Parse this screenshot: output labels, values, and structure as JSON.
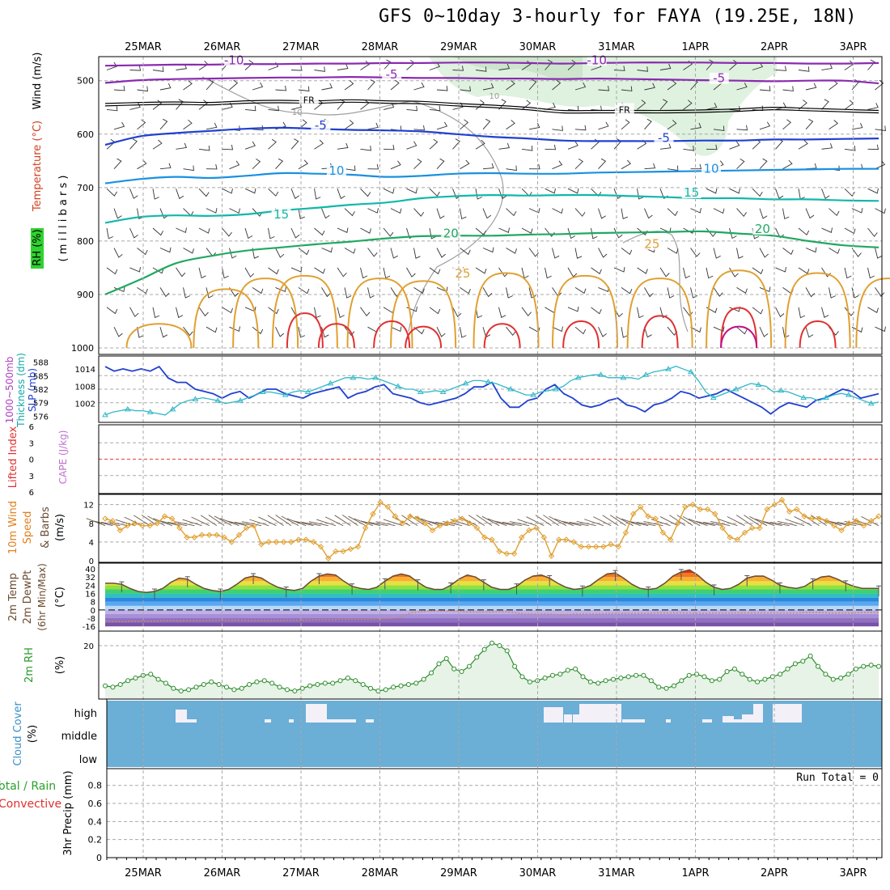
{
  "title": "GFS 0~10day 3-hourly for FAYA (19.25E, 18N)",
  "dates": [
    "25MAR",
    "26MAR",
    "27MAR",
    "28MAR",
    "29MAR",
    "30MAR",
    "31MAR",
    "1APR",
    "2APR",
    "3APR"
  ],
  "colors": {
    "frame": "#000000",
    "grid": "#a8a8a8",
    "purple": "#8a2ab0",
    "blue": "#2040d0",
    "lightblue": "#1a90e0",
    "teal": "#10b8a8",
    "green": "#20a860",
    "orange": "#e0a030",
    "red": "#e03030",
    "magenta": "#c0108a",
    "rhfill": "#dcefdc",
    "cloud": "#6baed6",
    "cyanline": "#30b8c8"
  },
  "chart_data": [
    {
      "panel": "cross-section",
      "type": "line",
      "ylabel_lines": [
        "RH (%)",
        "Temperature (°C)",
        "Wind (m/s)",
        "(millibars)"
      ],
      "ylabel_rh": "RH (%)",
      "ylabel_temp": "Temperature (°C)",
      "ylabel_wind": "Wind (m/s)",
      "ylabel_mb": "( m i l l i b a r s )",
      "yticks": [
        500,
        600,
        700,
        800,
        900,
        1000
      ],
      "ylim": [
        455,
        1000
      ],
      "contour_labels": [
        {
          "text": "-10",
          "day": 1.15,
          "p": 466
        },
        {
          "text": "-10",
          "day": 5.75,
          "p": 466
        },
        {
          "text": "-5",
          "day": 3.15,
          "p": 493
        },
        {
          "text": "-5",
          "day": 7.3,
          "p": 500
        },
        {
          "text": "FR",
          "day": 2.1,
          "p": 539
        },
        {
          "text": "FR",
          "day": 6.1,
          "p": 557
        },
        {
          "text": "-5",
          "day": 2.25,
          "p": 588
        },
        {
          "text": "-5",
          "day": 6.6,
          "p": 612
        },
        {
          "text": "10",
          "day": 2.45,
          "p": 673
        },
        {
          "text": "10",
          "day": 7.2,
          "p": 669
        },
        {
          "text": "15",
          "day": 1.75,
          "p": 755
        },
        {
          "text": "15",
          "day": 6.95,
          "p": 714
        },
        {
          "text": "20",
          "day": 3.9,
          "p": 790
        },
        {
          "text": "20",
          "day": 7.85,
          "p": 782
        },
        {
          "text": "25",
          "day": 4.05,
          "p": 865
        },
        {
          "text": "25",
          "day": 6.45,
          "p": 810
        }
      ],
      "rh_contour_labels": [
        {
          "text": "10",
          "day": 1.95,
          "p": 564
        },
        {
          "text": "10",
          "day": 4.45,
          "p": 534
        }
      ],
      "isotherms": [
        {
          "name": "-10",
          "color": "purple",
          "p": [
            472,
            471,
            470,
            470,
            469,
            469,
            468,
            468,
            467,
            467,
            466,
            466,
            467,
            468,
            467,
            466,
            466,
            466,
            467,
            467,
            468,
            468,
            467
          ]
        },
        {
          "name": "-5",
          "color": "purple",
          "p": [
            504,
            499,
            497,
            496,
            495,
            494,
            494,
            493,
            494,
            495,
            495,
            496,
            496,
            497,
            496,
            497,
            498,
            499,
            500,
            501,
            500,
            500,
            505
          ]
        },
        {
          "name": "FR",
          "color": "black",
          "p": [
            545,
            543,
            542,
            543,
            540,
            539,
            540,
            538,
            540,
            541,
            545,
            548,
            552,
            558,
            558,
            558,
            558,
            557,
            555,
            552,
            554,
            556,
            558
          ]
        },
        {
          "name": "5",
          "color": "blue",
          "p": [
            620,
            604,
            598,
            594,
            590,
            588,
            590,
            592,
            593,
            595,
            600,
            605,
            608,
            612,
            613,
            613,
            613,
            612,
            612,
            610,
            610,
            609,
            608
          ]
        },
        {
          "name": "10",
          "color": "lightblue",
          "p": [
            692,
            684,
            680,
            682,
            678,
            673,
            674,
            676,
            680,
            678,
            674,
            673,
            674,
            674,
            672,
            671,
            670,
            669,
            668,
            667,
            666,
            665,
            665
          ]
        },
        {
          "name": "15",
          "color": "teal",
          "p": [
            766,
            755,
            752,
            753,
            750,
            743,
            738,
            732,
            728,
            720,
            716,
            714,
            715,
            714,
            714,
            716,
            718,
            720,
            720,
            722,
            722,
            724,
            725
          ]
        },
        {
          "name": "20",
          "color": "green",
          "p": [
            900,
            872,
            842,
            828,
            818,
            812,
            806,
            801,
            795,
            791,
            790,
            790,
            788,
            787,
            785,
            784,
            783,
            782,
            786,
            790,
            800,
            808,
            812
          ]
        }
      ],
      "diurnal_cells": [
        {
          "day": 0.2,
          "top": 955,
          "color": "orange"
        },
        {
          "day": 1.05,
          "top": 890,
          "color": "orange"
        },
        {
          "day": 1.55,
          "top": 870,
          "color": "orange"
        },
        {
          "day": 2.05,
          "top": 865,
          "color": "orange"
        },
        {
          "day": 3.0,
          "top": 870,
          "color": "orange"
        },
        {
          "day": 3.55,
          "top": 875,
          "color": "orange"
        },
        {
          "day": 4.6,
          "top": 860,
          "color": "orange"
        },
        {
          "day": 5.6,
          "top": 865,
          "color": "orange"
        },
        {
          "day": 6.55,
          "top": 870,
          "color": "orange"
        },
        {
          "day": 7.55,
          "top": 855,
          "color": "orange"
        },
        {
          "day": 8.55,
          "top": 860,
          "color": "orange"
        },
        {
          "day": 9.45,
          "top": 870,
          "color": "orange"
        }
      ],
      "hot_cells": [
        {
          "day": 2.05,
          "top": 935,
          "color": "red"
        },
        {
          "day": 2.45,
          "top": 955,
          "color": "red"
        },
        {
          "day": 3.15,
          "top": 950,
          "color": "red"
        },
        {
          "day": 3.55,
          "top": 960,
          "color": "red"
        },
        {
          "day": 4.55,
          "top": 955,
          "color": "red"
        },
        {
          "day": 5.55,
          "top": 950,
          "color": "red"
        },
        {
          "day": 6.55,
          "top": 940,
          "color": "red"
        },
        {
          "day": 7.55,
          "top": 925,
          "color": "red"
        },
        {
          "day": 7.55,
          "top": 960,
          "color": "magenta"
        },
        {
          "day": 8.55,
          "top": 950,
          "color": "red"
        }
      ]
    },
    {
      "panel": "thickness-slp",
      "type": "line",
      "ylabel_left": "1000~500mb Thickness (dm)",
      "ylabel_right": "SLP (mb)",
      "ylabel_1": "1000~500mb",
      "ylabel_2": "Thickness (dm)",
      "ylabel_3": "SLP (mb)",
      "yticks_left": [
        576,
        579,
        582,
        585,
        588
      ],
      "yticks_right": [
        1002,
        1008,
        1014
      ],
      "thickness": {
        "color": "blue",
        "values": [
          587,
          586,
          586.5,
          586,
          586.5,
          586,
          587,
          584.5,
          583.5,
          583.5,
          582,
          581.5,
          581,
          580,
          581,
          581.5,
          580,
          581,
          582,
          582,
          581,
          580.5,
          580,
          581,
          581.5,
          582,
          582.5,
          580,
          581,
          581.5,
          582.5,
          583,
          581,
          580.5,
          580,
          579,
          578.5,
          579,
          579.5,
          580,
          581,
          582.5,
          582.5,
          583.5,
          580,
          578,
          578,
          579.5,
          580,
          582,
          583,
          581,
          580,
          578.5,
          578,
          578.5,
          579.5,
          580,
          578.5,
          578,
          577,
          578.5,
          579,
          580,
          581.5,
          581,
          580,
          580.5,
          581,
          582,
          581,
          580,
          579,
          578,
          576.5,
          578,
          579,
          578.5,
          578,
          579.5,
          580,
          581,
          582,
          581.5,
          580,
          580.5,
          581
        ]
      },
      "slp": {
        "color": "cyanline",
        "values": [
          998,
          999,
          999.5,
          1000,
          999.5,
          999.5,
          999,
          998.5,
          998,
          1000,
          1002,
          1003,
          1003.5,
          1004,
          1003.5,
          1003,
          1002,
          1002.5,
          1003,
          1004,
          1005,
          1006,
          1006,
          1005.5,
          1005,
          1006,
          1006.5,
          1006,
          1007,
          1008,
          1009,
          1010,
          1011,
          1011,
          1011,
          1010.5,
          1011,
          1010,
          1009,
          1008,
          1007,
          1007,
          1006,
          1006,
          1006.5,
          1006,
          1007,
          1008,
          1009,
          1010,
          1010,
          1009.5,
          1009,
          1008,
          1007,
          1006,
          1005,
          1005,
          1006,
          1006.5,
          1007,
          1008,
          1010,
          1011,
          1011.5,
          1012,
          1012,
          1011,
          1011,
          1011,
          1011,
          1010.5,
          1012,
          1013,
          1013.5,
          1014,
          1015,
          1014,
          1013,
          1010,
          1006,
          1004,
          1005,
          1006,
          1007,
          1008,
          1009,
          1008.5,
          1008,
          1006,
          1006.5,
          1006,
          1005,
          1004,
          1004,
          1003,
          1004,
          1005,
          1005.5,
          1005,
          1004,
          1003,
          1002,
          1002.5
        ]
      }
    },
    {
      "panel": "lifted-index-cape",
      "type": "line",
      "ylabel_li": "Lifted Index",
      "ylabel_cape": "CAPE (J/kg)",
      "yticks": [
        -6,
        -3,
        0,
        3,
        6
      ],
      "tick_labels": [
        "6",
        "3",
        "0",
        "3",
        "6"
      ]
    },
    {
      "panel": "10m-wind",
      "type": "line",
      "ylabel_lines": [
        "10m Wind",
        "Speed",
        "& Barbs",
        "(m/s)"
      ],
      "ylabel_1": "10m Wind",
      "ylabel_2": "Speed",
      "ylabel_3": "& Barbs",
      "ylabel_4": "(m/s)",
      "yticks": [
        0,
        4,
        8,
        12
      ],
      "ylim": [
        0,
        13.5
      ],
      "speed": [
        9,
        8.5,
        6.5,
        7.5,
        8,
        7.5,
        7.5,
        8,
        9.5,
        9,
        7,
        5,
        5,
        5.5,
        5.5,
        5.5,
        5,
        4,
        5.5,
        7,
        7.5,
        3.5,
        4,
        4,
        4,
        4,
        4.5,
        4.5,
        4,
        3,
        0.5,
        2,
        2,
        2.5,
        3,
        7,
        10,
        12.5,
        11.5,
        9.5,
        8,
        9.5,
        9,
        8,
        6.5,
        7.5,
        8,
        8.5,
        9,
        8,
        7,
        5,
        4.5,
        2,
        1.5,
        1.5,
        5,
        6.5,
        7,
        5,
        1,
        4.5,
        4.5,
        4,
        3,
        3,
        3,
        3,
        3.5,
        3,
        6,
        10,
        11.5,
        9.5,
        9,
        6,
        4.5,
        8,
        11.5,
        12,
        11,
        11,
        10,
        7,
        5,
        4.5,
        6,
        7,
        7,
        11,
        12,
        13,
        10.5,
        11,
        9.5,
        9,
        9,
        8.5,
        7.5,
        6.5,
        8,
        8.5,
        7.5,
        8.5,
        9.5
      ]
    },
    {
      "panel": "2m-temp",
      "type": "area",
      "ylabel_lines": [
        "2m Temp",
        "2m DewPt",
        "(6hr Min/Max)",
        "(°C)"
      ],
      "ylabel_1": "2m Temp",
      "ylabel_2": "2m DewPt",
      "ylabel_3": "(6hr Min/Max)",
      "ylabel_4": "(°C)",
      "yticks": [
        -16,
        -8,
        0,
        8,
        16,
        24,
        32,
        40
      ],
      "tick_labels": [
        "-16",
        "-8",
        "0",
        "8",
        "16",
        "24",
        "32",
        "40"
      ],
      "ylim": [
        -19,
        44
      ],
      "temp": [
        26,
        26,
        25,
        21,
        18,
        17,
        18,
        21,
        27,
        31,
        30,
        25,
        21,
        19,
        18,
        20,
        25,
        31,
        33,
        31,
        26,
        22,
        20,
        19,
        21,
        28,
        33,
        35,
        34,
        28,
        23,
        21,
        20,
        22,
        28,
        33,
        35,
        33,
        27,
        22,
        20,
        20,
        24,
        30,
        34,
        32,
        27,
        22,
        20,
        20,
        23,
        29,
        33,
        34,
        31,
        26,
        22,
        20,
        21,
        24,
        30,
        35,
        36,
        31,
        25,
        21,
        20,
        21,
        26,
        33,
        37,
        39,
        34,
        27,
        22,
        20,
        21,
        25,
        31,
        33,
        33,
        29,
        24,
        22,
        21,
        23,
        28,
        32,
        33,
        30,
        26,
        23,
        21,
        21,
        21
      ],
      "dewpt": [
        -11,
        -11,
        -11.5,
        -11,
        -11,
        -11,
        -11,
        -10.5,
        -10.5,
        -10.5,
        -10.5,
        -10.5,
        -10.5,
        -10,
        -10,
        -10,
        -10,
        -10,
        -10.5,
        -10.5,
        -10.5,
        -10.5,
        -10,
        -10,
        -10,
        -9.5,
        -9.5,
        -9.5,
        -9.5,
        -9,
        -9,
        -9,
        -9,
        -8.5,
        -8.5,
        -8,
        -7,
        -3,
        -2,
        -1,
        -1,
        -1,
        -1,
        -1,
        -2,
        -2,
        -2,
        -2,
        -1.5,
        -2,
        -3,
        -4,
        -4,
        -4,
        -4,
        -4.5,
        -4.5,
        -4,
        -4,
        -4,
        -4,
        -3.5,
        -3.5,
        -3.5,
        -3.5,
        -3.5,
        -3.5,
        -3,
        -3,
        -3,
        -3,
        -3,
        -3.5,
        -3.5,
        -3,
        -3,
        -3,
        -3,
        -3,
        -3,
        -3,
        -3,
        -3,
        -3,
        -3,
        -2.5,
        -2.5,
        -2.5,
        -3,
        -3,
        -3,
        -3,
        -2.5,
        -2.5,
        -2.5
      ]
    },
    {
      "panel": "2m-rh",
      "type": "area",
      "ylabel_1": "2m RH",
      "ylabel_2": "(%)",
      "yticks": [
        20
      ],
      "ylim": [
        0,
        25
      ],
      "values": [
        4.5,
        4,
        5,
        6.5,
        7.5,
        8.5,
        9,
        7,
        5.5,
        3.5,
        2.5,
        3,
        4,
        5,
        6,
        5,
        4,
        3,
        3.5,
        5,
        6,
        6.5,
        5.5,
        4,
        3,
        2.5,
        3.5,
        4.5,
        5,
        5.5,
        5.5,
        6.5,
        7.5,
        6.5,
        5,
        3.5,
        2.5,
        3,
        4,
        4.5,
        5,
        5.5,
        7,
        9.5,
        13,
        15,
        11,
        10,
        12,
        15.5,
        18.5,
        21,
        20,
        18,
        12,
        8,
        6,
        6.5,
        7.5,
        8.5,
        9,
        10.5,
        11,
        8,
        6,
        5.5,
        6.5,
        7,
        7.5,
        8,
        8.5,
        8.5,
        6.5,
        4,
        3.5,
        4.5,
        6.5,
        8.5,
        9,
        8,
        6.5,
        7,
        10,
        11,
        9,
        7,
        6,
        7,
        8,
        9,
        11,
        13,
        14,
        16,
        12,
        9,
        7,
        7.5,
        9,
        11,
        12,
        12.5,
        12
      ]
    },
    {
      "panel": "cloud-cover",
      "type": "bar",
      "ylabel_1": "Cloud Cover",
      "ylabel_2": "(%)",
      "levels": [
        "high",
        "middle",
        "low"
      ]
    },
    {
      "panel": "precip",
      "type": "line",
      "ylabel_lines": [
        "Total / Rain",
        "Convective",
        "3hr Precip (mm)"
      ],
      "ylabel_1": "Total / Rain",
      "ylabel_2": "Convective",
      "ylabel_3": "3hr Precip (mm)",
      "yticks": [
        0,
        0.2,
        0.4,
        0.6,
        0.8
      ],
      "tick_labels": [
        "0",
        "0.2",
        "0.4",
        "0.6",
        "0.8"
      ],
      "ylim": [
        0,
        0.95
      ],
      "annotation": "Run Total = 0"
    }
  ]
}
